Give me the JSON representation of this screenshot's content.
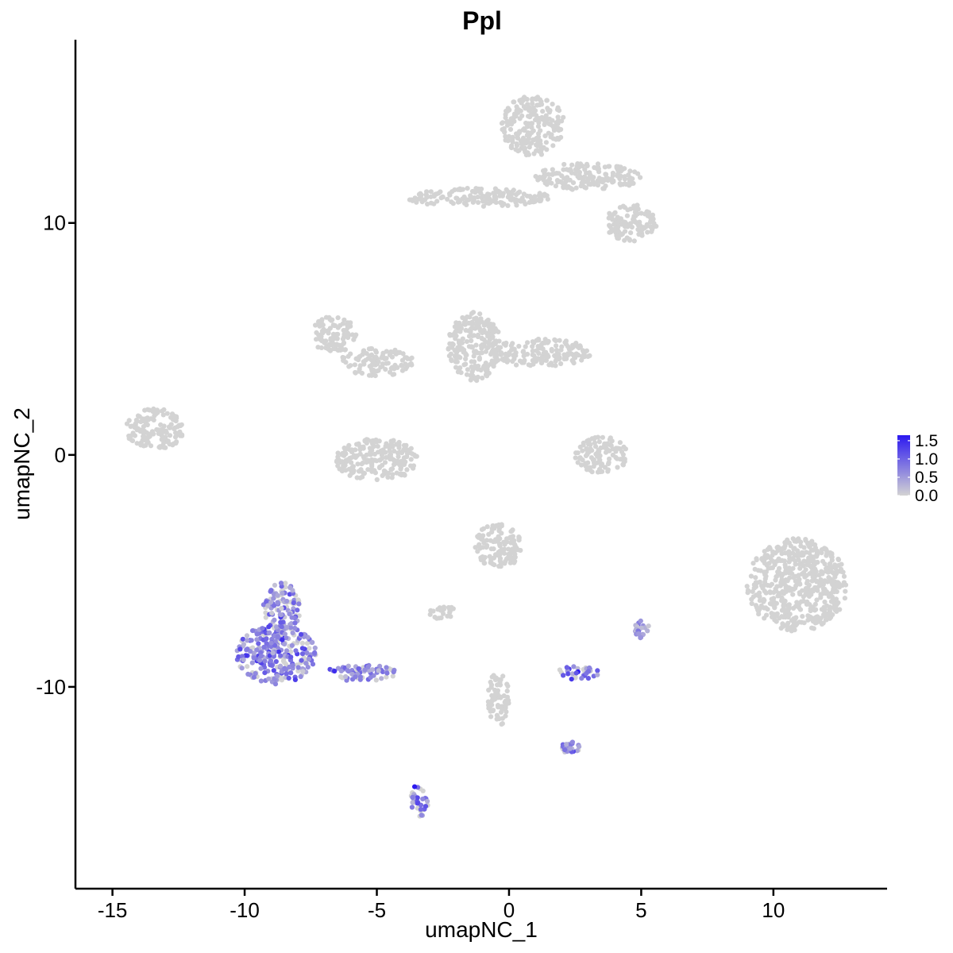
{
  "chart_data": {
    "type": "scatter",
    "title": "Ppl",
    "xlabel": "umapNC_1",
    "ylabel": "umapNC_2",
    "xlim": [
      -16.4,
      14.3
    ],
    "ylim": [
      -18.7,
      17.9
    ],
    "x_ticks": [
      -15,
      -10,
      -5,
      0,
      5,
      10
    ],
    "x_tick_labels": [
      "-15",
      "-10",
      "-5",
      "0",
      "5",
      "10"
    ],
    "y_ticks": [
      -10,
      0,
      10
    ],
    "y_tick_labels": [
      "-10",
      "0",
      "10"
    ],
    "grid": false,
    "legend": {
      "placement": "right",
      "type": "colorbar",
      "min": 0.0,
      "max": 1.65,
      "ticks": [
        "1.5",
        "1.0",
        "0.5",
        "0.0"
      ],
      "tick_values": [
        1.5,
        1.0,
        0.5,
        0.0
      ],
      "low_color": "#d3d3d3",
      "high_color": "#2c19f0"
    },
    "colors": {
      "not_expressed": "#d3d3d3",
      "expressed_low": "#b9a6ea",
      "expressed_high": "#2c19f0"
    },
    "clusters": [
      {
        "cx": 0.9,
        "cy": 14.2,
        "rx": 1.2,
        "ry": 1.3,
        "expr": 0.0
      },
      {
        "cx": 3.0,
        "cy": 12.0,
        "rx": 2.0,
        "ry": 0.6,
        "expr": 0.0
      },
      {
        "cx": 4.6,
        "cy": 10.0,
        "rx": 1.0,
        "ry": 0.8,
        "expr": 0.0
      },
      {
        "cx": -1.2,
        "cy": 11.1,
        "rx": 2.8,
        "ry": 0.4,
        "expr": 0.0
      },
      {
        "cx": -6.6,
        "cy": 5.2,
        "rx": 0.9,
        "ry": 0.8,
        "expr": 0.0
      },
      {
        "cx": -5.0,
        "cy": 4.0,
        "rx": 1.4,
        "ry": 0.6,
        "expr": 0.0
      },
      {
        "cx": -1.3,
        "cy": 4.7,
        "rx": 1.0,
        "ry": 1.5,
        "expr": 0.0
      },
      {
        "cx": 1.2,
        "cy": 4.4,
        "rx": 1.9,
        "ry": 0.6,
        "expr": 0.0
      },
      {
        "cx": -13.4,
        "cy": 1.1,
        "rx": 1.1,
        "ry": 0.9,
        "expr": 0.0
      },
      {
        "cx": -5.0,
        "cy": -0.2,
        "rx": 1.6,
        "ry": 0.9,
        "expr": 0.0
      },
      {
        "cx": 3.5,
        "cy": 0.0,
        "rx": 1.0,
        "ry": 0.8,
        "expr": 0.0
      },
      {
        "cx": 10.9,
        "cy": -5.6,
        "rx": 1.9,
        "ry": 2.0,
        "expr": 0.0
      },
      {
        "cx": -0.4,
        "cy": -3.9,
        "rx": 0.9,
        "ry": 1.0,
        "expr": 0.0
      },
      {
        "cx": -2.5,
        "cy": -6.8,
        "rx": 0.5,
        "ry": 0.3,
        "expr": 0.0
      },
      {
        "cx": -0.4,
        "cy": -10.5,
        "rx": 0.4,
        "ry": 1.2,
        "expr": 0.0
      },
      {
        "cx": -8.8,
        "cy": -8.6,
        "rx": 1.5,
        "ry": 1.3,
        "expr": 0.7
      },
      {
        "cx": -8.6,
        "cy": -6.6,
        "rx": 0.7,
        "ry": 1.1,
        "expr": 0.6
      },
      {
        "cx": -5.6,
        "cy": -9.4,
        "rx": 1.4,
        "ry": 0.35,
        "expr": 0.6
      },
      {
        "cx": -3.4,
        "cy": -14.9,
        "rx": 0.35,
        "ry": 0.7,
        "expr": 0.8
      },
      {
        "cx": 2.6,
        "cy": -9.4,
        "rx": 0.8,
        "ry": 0.3,
        "expr": 0.8
      },
      {
        "cx": 2.3,
        "cy": -12.6,
        "rx": 0.4,
        "ry": 0.25,
        "expr": 0.6
      },
      {
        "cx": 5.0,
        "cy": -7.5,
        "rx": 0.3,
        "ry": 0.4,
        "expr": 0.5
      }
    ]
  }
}
